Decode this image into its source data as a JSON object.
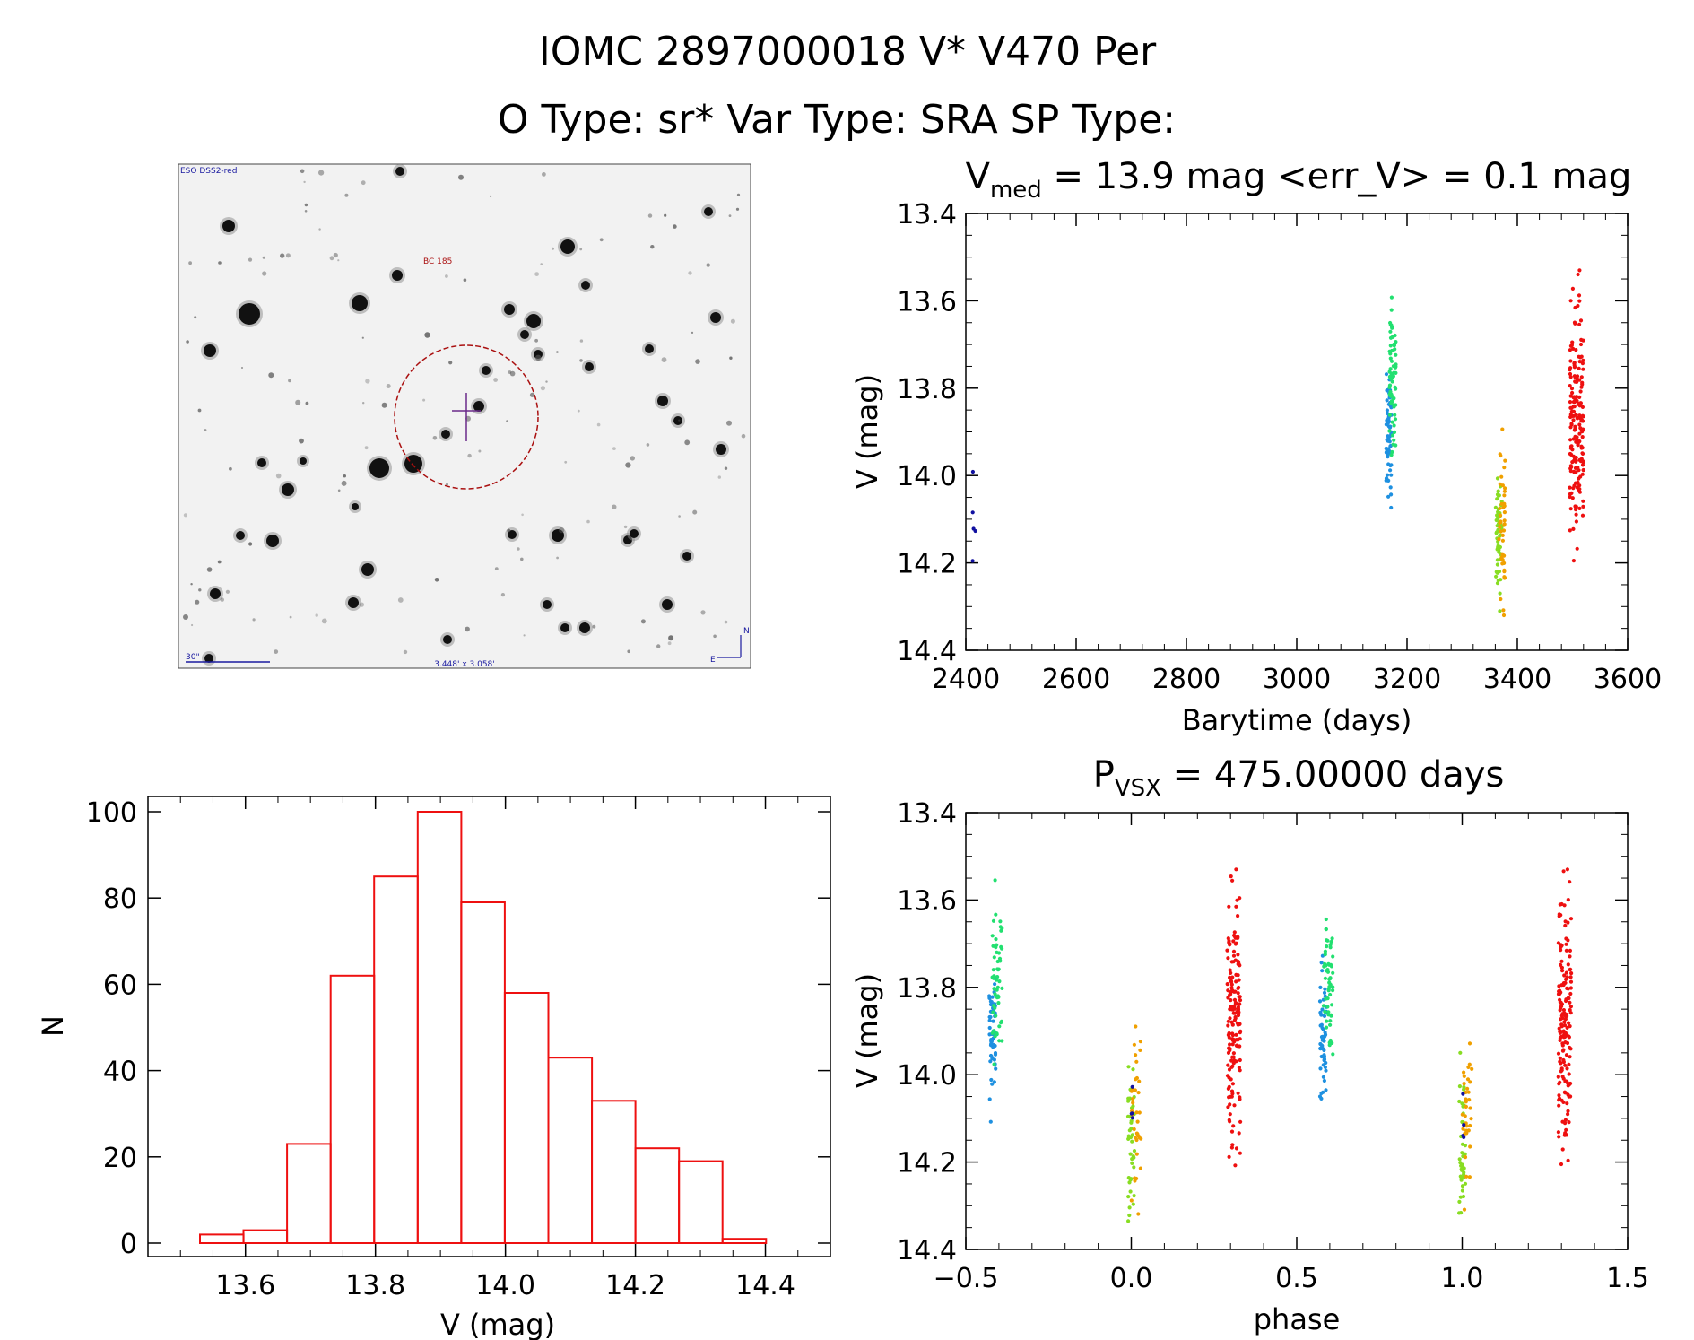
{
  "header": {
    "title": "IOMC 2897000018   V* V470 Per",
    "subtitle": "O Type: sr*  Var Type: SRA  SP Type:"
  },
  "image_panel": {
    "survey_label": "ESO DSS2-red",
    "target_label": "BC 185",
    "scale_label": "30\"",
    "fov_label": "3.448' x 3.058'",
    "north_label": "N",
    "east_label": "E"
  },
  "chart_data": [
    {
      "id": "lightcurve",
      "type": "scatter",
      "title_parts": {
        "v": "V",
        "sub": "med",
        "rest": " = 13.9 mag <err_V> = 0.1 mag"
      },
      "xlabel": "Barytime (days)",
      "ylabel": "V (mag)",
      "xlim": [
        2400,
        3600
      ],
      "ylim": [
        13.4,
        14.4
      ],
      "y_inverted": true,
      "xticks": [
        2400,
        2600,
        2800,
        3000,
        3200,
        3400,
        3600
      ],
      "xtick_labels": [
        "2400",
        "2600",
        "2800",
        "3000",
        "3200",
        "3400",
        "3600"
      ],
      "yticks": [
        13.4,
        13.6,
        13.8,
        14.0,
        14.2,
        14.4
      ],
      "ytick_labels": [
        "13.4",
        "13.6",
        "13.8",
        "14.0",
        "14.2",
        "14.4"
      ],
      "series": [
        {
          "name": "season-1",
          "color": "#1010a0",
          "x_range": [
            2412,
            2418
          ],
          "y_range": [
            13.96,
            14.24
          ],
          "n": 5
        },
        {
          "name": "season-2a",
          "color": "#1e90e0",
          "x_range": [
            3162,
            3172
          ],
          "y_range": [
            13.7,
            14.12
          ],
          "n": 70
        },
        {
          "name": "season-2b",
          "color": "#22e070",
          "x_range": [
            3168,
            3180
          ],
          "y_range": [
            13.55,
            14.0
          ],
          "n": 70
        },
        {
          "name": "season-3a",
          "color": "#88dd22",
          "x_range": [
            3360,
            3372
          ],
          "y_range": [
            13.93,
            14.37
          ],
          "n": 55
        },
        {
          "name": "season-3b",
          "color": "#f0a000",
          "x_range": [
            3366,
            3378
          ],
          "y_range": [
            13.87,
            14.32
          ],
          "n": 45
        },
        {
          "name": "season-4",
          "color": "#ee1010",
          "x_range": [
            3495,
            3520
          ],
          "y_range": [
            13.53,
            14.22
          ],
          "n": 190
        }
      ]
    },
    {
      "id": "histogram",
      "type": "bar",
      "title": "",
      "xlabel": "V (mag)",
      "ylabel": "N",
      "xlim": [
        13.45,
        14.5
      ],
      "ylim": [
        0,
        100
      ],
      "bar_color": "#ee1010",
      "bin_edges": [
        13.53,
        13.597,
        13.664,
        13.731,
        13.798,
        13.865,
        13.932,
        13.999,
        14.066,
        14.133,
        14.2,
        14.267,
        14.334,
        14.401
      ],
      "values": [
        2,
        3,
        23,
        62,
        85,
        100,
        79,
        58,
        43,
        33,
        22,
        19,
        1
      ],
      "xticks": [
        13.6,
        13.8,
        14.0,
        14.2,
        14.4
      ],
      "xtick_labels": [
        "13.6",
        "13.8",
        "14.0",
        "14.2",
        "14.4"
      ],
      "yticks": [
        0,
        20,
        40,
        60,
        80,
        100
      ],
      "ytick_labels": [
        "0",
        "20",
        "40",
        "60",
        "80",
        "100"
      ]
    },
    {
      "id": "phased",
      "type": "scatter",
      "title_parts": {
        "v": "P",
        "sub": "VSX",
        "rest": " = 475.00000 days"
      },
      "xlabel": "phase",
      "ylabel": "V (mag)",
      "xlim": [
        -0.5,
        1.5
      ],
      "ylim": [
        13.4,
        14.4
      ],
      "y_inverted": true,
      "xticks": [
        -0.5,
        0.0,
        0.5,
        1.0,
        1.5
      ],
      "xtick_labels": [
        "−0.5",
        "0.0",
        "0.5",
        "1.0",
        "1.5"
      ],
      "yticks": [
        13.4,
        13.6,
        13.8,
        14.0,
        14.2,
        14.4
      ],
      "ytick_labels": [
        "13.4",
        "13.6",
        "13.8",
        "14.0",
        "14.2",
        "14.4"
      ],
      "series": [
        {
          "name": "blue",
          "color": "#1e90e0",
          "x_ranges": [
            [
              -0.43,
              -0.41
            ],
            [
              0.57,
              0.59
            ]
          ],
          "y_range": [
            13.7,
            14.12
          ],
          "n": 55
        },
        {
          "name": "green",
          "color": "#22e070",
          "x_ranges": [
            [
              -0.42,
              -0.39
            ],
            [
              0.58,
              0.61
            ]
          ],
          "y_range": [
            13.55,
            14.0
          ],
          "n": 55
        },
        {
          "name": "yellow-green",
          "color": "#88dd22",
          "x_ranges": [
            [
              -0.01,
              0.01
            ],
            [
              0.99,
              1.01
            ]
          ],
          "y_range": [
            13.93,
            14.37
          ],
          "n": 40
        },
        {
          "name": "orange",
          "color": "#f0a000",
          "x_ranges": [
            [
              0.0,
              0.03
            ],
            [
              1.0,
              1.03
            ]
          ],
          "y_range": [
            13.87,
            14.32
          ],
          "n": 35
        },
        {
          "name": "red",
          "color": "#ee1010",
          "x_ranges": [
            [
              0.29,
              0.33
            ],
            [
              1.29,
              1.33
            ]
          ],
          "y_range": [
            13.53,
            14.22
          ],
          "n": 170
        },
        {
          "name": "dark",
          "color": "#1010a0",
          "x_ranges": [
            [
              0.0,
              0.005
            ],
            [
              1.0,
              1.005
            ]
          ],
          "y_range": [
            13.96,
            14.24
          ],
          "n": 4
        }
      ]
    }
  ]
}
